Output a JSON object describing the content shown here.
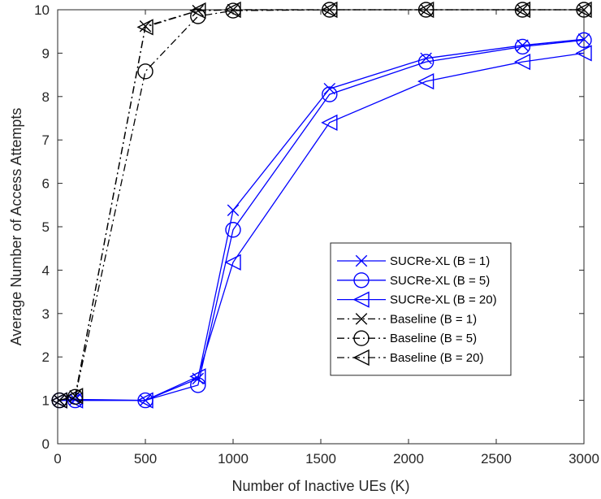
{
  "chart_data": {
    "type": "line",
    "xlabel": "Number of Inactive UEs (K)",
    "ylabel": "Average Number of Access Attempts",
    "xlim": [
      0,
      3000
    ],
    "ylim": [
      0,
      10
    ],
    "xticks": [
      0,
      500,
      1000,
      1500,
      2000,
      2500,
      3000
    ],
    "yticks": [
      0,
      1,
      2,
      3,
      4,
      5,
      6,
      7,
      8,
      9,
      10
    ],
    "grid": false,
    "legend_position": "center-right",
    "series": [
      {
        "name": "SUCRe-XL (B = 1)",
        "color": "#0000ff",
        "line_style": "solid",
        "marker": "x",
        "points": [
          [
            10,
            1.0
          ],
          [
            100,
            1.02
          ],
          [
            500,
            1.0
          ],
          [
            800,
            1.5
          ],
          [
            1000,
            5.38
          ],
          [
            1550,
            8.18
          ],
          [
            2100,
            8.88
          ],
          [
            2650,
            9.18
          ],
          [
            3000,
            9.32
          ]
        ]
      },
      {
        "name": "SUCRe-XL (B = 5)",
        "color": "#0000ff",
        "line_style": "solid",
        "marker": "circle",
        "points": [
          [
            10,
            1.0
          ],
          [
            100,
            1.0
          ],
          [
            500,
            1.0
          ],
          [
            800,
            1.35
          ],
          [
            1000,
            4.93
          ],
          [
            1550,
            8.05
          ],
          [
            2100,
            8.8
          ],
          [
            2650,
            9.15
          ],
          [
            3000,
            9.3
          ]
        ]
      },
      {
        "name": "SUCRe-XL (B = 20)",
        "color": "#0000ff",
        "line_style": "solid",
        "marker": "triangle-left",
        "points": [
          [
            10,
            1.0
          ],
          [
            100,
            1.0
          ],
          [
            500,
            1.0
          ],
          [
            800,
            1.55
          ],
          [
            1000,
            4.18
          ],
          [
            1550,
            7.4
          ],
          [
            2100,
            8.35
          ],
          [
            2650,
            8.8
          ],
          [
            3000,
            9.0
          ]
        ]
      },
      {
        "name": "Baseline (B = 1)",
        "color": "#000000",
        "line_style": "dashdot",
        "marker": "x",
        "points": [
          [
            10,
            1.0
          ],
          [
            100,
            1.1
          ],
          [
            500,
            9.62
          ],
          [
            800,
            9.98
          ],
          [
            1000,
            10.0
          ],
          [
            1550,
            10.0
          ],
          [
            2100,
            10.0
          ],
          [
            2650,
            10.0
          ],
          [
            3000,
            10.0
          ]
        ]
      },
      {
        "name": "Baseline (B = 5)",
        "color": "#000000",
        "line_style": "dashdot",
        "marker": "circle",
        "points": [
          [
            10,
            1.0
          ],
          [
            100,
            1.08
          ],
          [
            500,
            8.58
          ],
          [
            800,
            9.85
          ],
          [
            1000,
            9.98
          ],
          [
            1550,
            10.0
          ],
          [
            2100,
            10.0
          ],
          [
            2650,
            10.0
          ],
          [
            3000,
            10.0
          ]
        ]
      },
      {
        "name": "Baseline (B = 20)",
        "color": "#000000",
        "line_style": "dashdot",
        "marker": "triangle-left",
        "points": [
          [
            10,
            1.0
          ],
          [
            100,
            1.1
          ],
          [
            500,
            9.6
          ],
          [
            800,
            9.98
          ],
          [
            1000,
            10.0
          ],
          [
            1550,
            10.0
          ],
          [
            2100,
            10.0
          ],
          [
            2650,
            10.0
          ],
          [
            3000,
            10.0
          ]
        ]
      }
    ]
  }
}
